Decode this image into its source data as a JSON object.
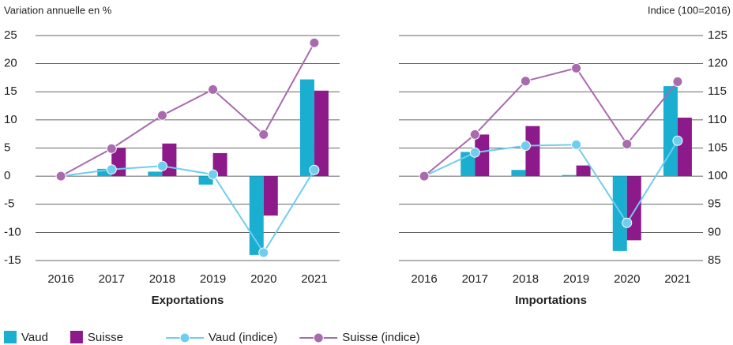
{
  "chart_data": [
    {
      "type": "bar",
      "title": "Exportations",
      "ylabel": "Variation annuelle en %",
      "categories": [
        "2016",
        "2017",
        "2018",
        "2019",
        "2020",
        "2021"
      ],
      "ylim": [
        -15,
        25
      ],
      "yticks": [
        -15,
        -10,
        -5,
        0,
        5,
        10,
        15,
        20,
        25
      ],
      "y2lim": [
        85,
        125
      ],
      "grid": true,
      "series": [
        {
          "name": "Vaud",
          "kind": "bar",
          "color": "#1aaed0",
          "values": [
            0,
            1.3,
            0.8,
            -1.5,
            -14,
            17.2
          ]
        },
        {
          "name": "Suisse",
          "kind": "bar",
          "color": "#8c1a8a",
          "values": [
            0,
            5,
            5.8,
            4.1,
            -7,
            15.2
          ]
        },
        {
          "name": "Vaud (indice)",
          "kind": "line",
          "axis": "y2",
          "color": "#6fcdef",
          "values": [
            100,
            101.2,
            101.8,
            100.3,
            86.4,
            101.1
          ]
        },
        {
          "name": "Suisse (indice)",
          "kind": "line",
          "axis": "y2",
          "color": "#a86bae",
          "values": [
            100,
            104.9,
            110.8,
            115.4,
            107.4,
            123.7
          ]
        }
      ]
    },
    {
      "type": "bar",
      "title": "Importations",
      "y2label": "Indice (100=2016)",
      "categories": [
        "2016",
        "2017",
        "2018",
        "2019",
        "2020",
        "2021"
      ],
      "ylim": [
        -15,
        25
      ],
      "y2lim": [
        85,
        125
      ],
      "y2ticks": [
        85,
        90,
        95,
        100,
        105,
        110,
        115,
        120,
        125
      ],
      "grid": true,
      "series": [
        {
          "name": "Vaud",
          "kind": "bar",
          "color": "#1aaed0",
          "values": [
            0,
            4.3,
            1.1,
            0.2,
            -13.3,
            16
          ]
        },
        {
          "name": "Suisse",
          "kind": "bar",
          "color": "#8c1a8a",
          "values": [
            0,
            7.4,
            8.9,
            1.9,
            -11.4,
            10.4
          ]
        },
        {
          "name": "Vaud (indice)",
          "kind": "line",
          "axis": "y2",
          "color": "#6fcdef",
          "values": [
            100,
            104.2,
            105.4,
            105.6,
            91.7,
            106.3
          ]
        },
        {
          "name": "Suisse (indice)",
          "kind": "line",
          "axis": "y2",
          "color": "#a86bae",
          "values": [
            100,
            107.4,
            116.9,
            119.2,
            105.7,
            116.8
          ]
        }
      ]
    }
  ]
}
